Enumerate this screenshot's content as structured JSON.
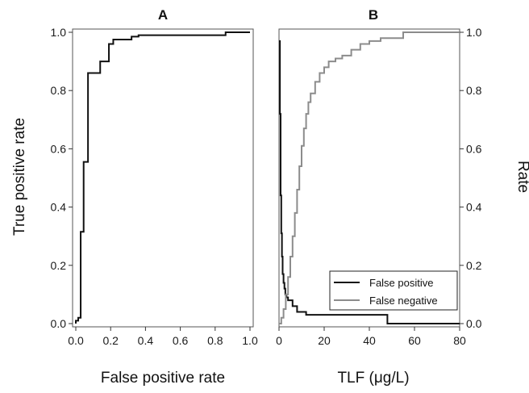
{
  "chart_data": [
    {
      "panel": "A",
      "type": "line",
      "title": "A",
      "xlabel": "False positive rate",
      "ylabel": "True positive rate",
      "xlim": [
        0,
        1
      ],
      "ylim": [
        0,
        1
      ],
      "xticks": [
        "0.0",
        "0.2",
        "0.4",
        "0.6",
        "0.8",
        "1.0"
      ],
      "yticks": [
        "0.0",
        "0.2",
        "0.4",
        "0.6",
        "0.8",
        "1.0"
      ],
      "grid": false,
      "series": [
        {
          "step": true,
          "color": "#111111",
          "x": [
            0.0,
            0.0,
            0.014,
            0.014,
            0.028,
            0.028,
            0.045,
            0.045,
            0.07,
            0.07,
            0.14,
            0.14,
            0.19,
            0.19,
            0.215,
            0.215,
            0.245,
            0.245,
            0.32,
            0.32,
            0.36,
            0.36,
            0.86,
            0.86,
            1.0
          ],
          "y": [
            0.0,
            0.01,
            0.01,
            0.02,
            0.02,
            0.315,
            0.315,
            0.555,
            0.555,
            0.86,
            0.86,
            0.9,
            0.9,
            0.96,
            0.96,
            0.975,
            0.975,
            0.975,
            0.975,
            0.985,
            0.985,
            0.99,
            0.99,
            1.0,
            1.0
          ]
        }
      ]
    },
    {
      "panel": "B",
      "type": "line",
      "title": "B",
      "xlabel": "TLF (μg/L)",
      "ylabel": "Rate",
      "xlim": [
        0,
        80
      ],
      "ylim": [
        0,
        1
      ],
      "xticks": [
        "0",
        "20",
        "40",
        "60",
        "80"
      ],
      "yticks": [
        "0.0",
        "0.2",
        "0.4",
        "0.6",
        "0.8",
        "1.0"
      ],
      "grid": false,
      "legend_position": "bottom-right",
      "series": [
        {
          "name": "False positive",
          "step": true,
          "color": "#111111",
          "x": [
            0.0,
            0.4,
            0.7,
            1.0,
            1.3,
            1.6,
            2.0,
            2.4,
            2.8,
            3.3,
            4.0,
            6.0,
            6.0,
            8.0,
            8.0,
            12.0,
            12.0,
            48.0,
            48.0,
            80.0
          ],
          "y": [
            0.97,
            0.72,
            0.44,
            0.31,
            0.23,
            0.17,
            0.14,
            0.12,
            0.1,
            0.09,
            0.08,
            0.08,
            0.06,
            0.06,
            0.04,
            0.04,
            0.03,
            0.03,
            0.0,
            0.0
          ]
        },
        {
          "name": "False negative",
          "step": true,
          "color": "#8c8c8c",
          "x": [
            0.0,
            1.0,
            2.0,
            3.0,
            4.0,
            5.0,
            6.0,
            7.0,
            8.0,
            9.0,
            10.0,
            11.0,
            12.0,
            13.0,
            14.0,
            16.0,
            18.0,
            20.0,
            22.0,
            25.0,
            28.0,
            32.0,
            36.0,
            40.0,
            45.0,
            55.0,
            80.0
          ],
          "y": [
            0.0,
            0.02,
            0.05,
            0.1,
            0.16,
            0.23,
            0.3,
            0.38,
            0.46,
            0.54,
            0.61,
            0.67,
            0.72,
            0.76,
            0.79,
            0.83,
            0.86,
            0.88,
            0.9,
            0.91,
            0.92,
            0.94,
            0.96,
            0.97,
            0.98,
            1.0,
            1.0
          ]
        }
      ]
    }
  ]
}
